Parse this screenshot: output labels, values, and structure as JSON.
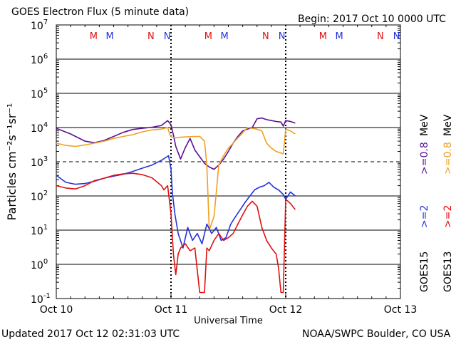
{
  "header": {
    "title": "GOES Electron Flux (5 minute data)",
    "begin": "Begin: 2017 Oct 10 0000 UTC"
  },
  "footer": {
    "updated": "Updated 2017 Oct 12 02:31:03 UTC",
    "credit": "NOAA/SWPC Boulder, CO USA"
  },
  "colors": {
    "goes15_2mev": "#2233dd",
    "goes13_2mev": "#e01010",
    "goes15_08mev": "#5a0f96",
    "goes13_08mev": "#f0a020",
    "marker_m_goes13": "#e01010",
    "marker_n_goes13": "#e01010",
    "marker_m_goes15": "#2233dd",
    "marker_n_goes15": "#2233dd"
  },
  "chart_data": {
    "type": "line",
    "title": "GOES Electron Flux (5 minute data)",
    "xlabel": "Universal Time",
    "ylabel": "Particles cm⁻²s⁻¹sr⁻¹",
    "yscale": "log",
    "ylim": [
      0.1,
      10000000
    ],
    "xlim": [
      0,
      72
    ],
    "x_unit": "hours since 2017 Oct 10 0000 UTC",
    "x_ticks": [
      {
        "x": 0,
        "label": "Oct 10"
      },
      {
        "x": 24,
        "label": "Oct 11"
      },
      {
        "x": 48,
        "label": "Oct 12"
      },
      {
        "x": 72,
        "label": "Oct 13"
      }
    ],
    "y_ticks": [
      {
        "value": 10000000,
        "base": "10",
        "exp": "7"
      },
      {
        "value": 1000000,
        "base": "10",
        "exp": "6"
      },
      {
        "value": 100000,
        "base": "10",
        "exp": "5"
      },
      {
        "value": 10000,
        "base": "10",
        "exp": "4"
      },
      {
        "value": 1000,
        "base": "10",
        "exp": "3"
      },
      {
        "value": 100,
        "base": "10",
        "exp": "2"
      },
      {
        "value": 10,
        "base": "10",
        "exp": "1"
      },
      {
        "value": 1,
        "base": "10",
        "exp": "0"
      },
      {
        "value": 0.1,
        "base": "10",
        "exp": "-1"
      }
    ],
    "threshold": {
      "value": 1000,
      "style": "dashed"
    },
    "day_markers": [
      24,
      48
    ],
    "m_n_markers": [
      {
        "label": "M",
        "x": 7.8,
        "sat": "goes13"
      },
      {
        "label": "M",
        "x": 11.2,
        "sat": "goes15"
      },
      {
        "label": "N",
        "x": 19.8,
        "sat": "goes13"
      },
      {
        "label": "N",
        "x": 23.2,
        "sat": "goes15"
      },
      {
        "label": "M",
        "x": 31.8,
        "sat": "goes13"
      },
      {
        "label": "M",
        "x": 35.2,
        "sat": "goes15"
      },
      {
        "label": "N",
        "x": 43.8,
        "sat": "goes13"
      },
      {
        "label": "N",
        "x": 47.2,
        "sat": "goes15"
      },
      {
        "label": "M",
        "x": 55.8,
        "sat": "goes13"
      },
      {
        "label": "M",
        "x": 59.2,
        "sat": "goes15"
      },
      {
        "label": "N",
        "x": 67.8,
        "sat": "goes13"
      },
      {
        "label": "N",
        "x": 71.2,
        "sat": "goes15"
      }
    ],
    "legend": {
      "position": "right",
      "goes15_label": "GOES15",
      "goes13_label": "GOES13",
      "entries": [
        {
          "text": ">=2",
          "color_key": "goes15_2mev"
        },
        {
          "text": ">=2",
          "color_key": "goes13_2mev"
        },
        {
          "text": ">=0.8",
          "color_key": "goes15_08mev"
        },
        {
          "text": ">=0.8",
          "color_key": "goes13_08mev"
        }
      ],
      "unit": "MeV"
    },
    "series": [
      {
        "name": "GOES15 >=0.8 MeV",
        "color_key": "goes15_08mev",
        "x": [
          0,
          3,
          6,
          8,
          10,
          12,
          14,
          16,
          18,
          20,
          22,
          23.3,
          24,
          24.5,
          25,
          26,
          27,
          28,
          29,
          30,
          31,
          32,
          33,
          34,
          35,
          36,
          37,
          38,
          39,
          40,
          41,
          42,
          43,
          44,
          45,
          46,
          47,
          47.5,
          48,
          49,
          50
        ],
        "y": [
          9500,
          6500,
          4000,
          3600,
          4200,
          5500,
          7200,
          8800,
          9500,
          10200,
          11500,
          16000,
          12000,
          6000,
          2800,
          1200,
          2600,
          4800,
          2200,
          1400,
          900,
          700,
          600,
          800,
          1200,
          2000,
          3500,
          5500,
          8000,
          9000,
          10000,
          18000,
          19000,
          17000,
          16000,
          15000,
          14500,
          11000,
          16000,
          15000,
          13500
        ]
      },
      {
        "name": "GOES13 >=0.8 MeV",
        "color_key": "goes13_08mev",
        "x": [
          0,
          2,
          4,
          6,
          8,
          10,
          12,
          14,
          16,
          18,
          20,
          22,
          23.3,
          23.8,
          24.2,
          25,
          26,
          27,
          28,
          29,
          30,
          31,
          31.5,
          32,
          33,
          34,
          35,
          36,
          37,
          38,
          39,
          40,
          41,
          42,
          43,
          44,
          45,
          46,
          47,
          47.5,
          48,
          49,
          50
        ],
        "y": [
          3500,
          3000,
          2800,
          3100,
          3500,
          4000,
          4800,
          5500,
          6200,
          7500,
          8500,
          9000,
          10000,
          6000,
          5200,
          5000,
          5200,
          5300,
          5400,
          5500,
          5500,
          4000,
          800,
          10,
          25,
          800,
          1500,
          2500,
          3500,
          5000,
          7000,
          10000,
          9500,
          9000,
          8000,
          3500,
          2500,
          2000,
          1800,
          1700,
          9000,
          8000,
          6500
        ]
      },
      {
        "name": "GOES15 >=2 MeV",
        "color_key": "goes15_2mev",
        "x": [
          0,
          2,
          4,
          6,
          8,
          10,
          12,
          14,
          16,
          18,
          20,
          22,
          23.5,
          24,
          24.3,
          24.8,
          25.5,
          26.5,
          27.5,
          28.5,
          29.5,
          30.5,
          31.5,
          32.5,
          33.5,
          34.5,
          35.5,
          36.5,
          37.5,
          38.5,
          39.5,
          40.5,
          41.5,
          42.5,
          43.5,
          44.5,
          45.5,
          46.5,
          47.5,
          48,
          49,
          50
        ],
        "y": [
          400,
          250,
          220,
          230,
          270,
          330,
          380,
          430,
          520,
          650,
          800,
          1100,
          1500,
          600,
          120,
          30,
          8,
          3,
          12,
          5,
          8,
          4,
          15,
          8,
          12,
          5,
          6,
          15,
          25,
          40,
          65,
          100,
          150,
          180,
          200,
          250,
          180,
          150,
          110,
          80,
          130,
          100
        ]
      },
      {
        "name": "GOES13 >=2 MeV",
        "color_key": "goes13_2mev",
        "x": [
          0,
          2,
          4,
          6,
          8,
          10,
          12,
          14,
          16,
          18,
          20,
          22,
          22.5,
          23.3,
          24,
          24.5,
          25,
          25.5,
          26,
          27,
          28,
          29,
          30,
          31,
          31.5,
          32,
          33,
          34,
          35,
          36,
          37,
          38,
          39,
          40,
          41,
          42,
          43,
          44,
          45,
          46,
          46.5,
          47,
          47.5,
          48,
          49,
          50
        ],
        "y": [
          200,
          170,
          160,
          200,
          280,
          330,
          400,
          440,
          460,
          420,
          340,
          200,
          150,
          200,
          30,
          2,
          0.5,
          2,
          3,
          4,
          2.5,
          3,
          0.15,
          0.15,
          3,
          2.5,
          5,
          8,
          5,
          6,
          8,
          15,
          28,
          50,
          70,
          50,
          12,
          5,
          3,
          2,
          0.8,
          0.15,
          0.15,
          80,
          60,
          40
        ]
      }
    ]
  }
}
